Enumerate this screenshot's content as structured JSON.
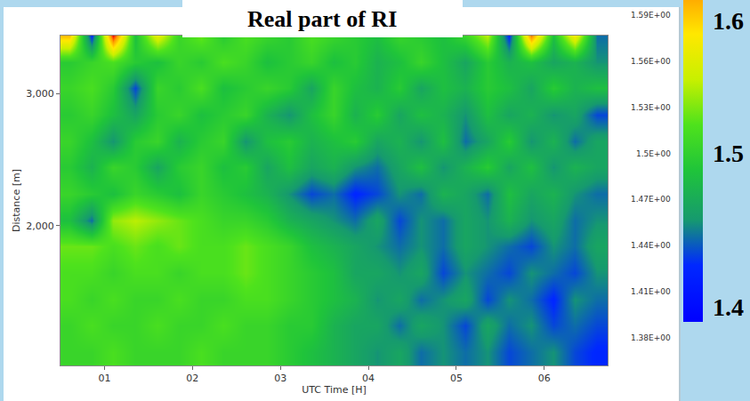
{
  "chart_data": {
    "type": "heatmap",
    "title": "Real part of RI",
    "xlabel": "UTC Time [H]",
    "ylabel": "Distance [m]",
    "x": [
      0.6,
      0.85,
      1.1,
      1.35,
      1.6,
      1.85,
      2.1,
      2.35,
      2.6,
      2.85,
      3.1,
      3.35,
      3.6,
      3.85,
      4.1,
      4.35,
      4.6,
      4.85,
      5.1,
      5.35,
      5.6,
      5.85,
      6.1,
      6.35,
      6.6
    ],
    "y": [
      1040,
      1240,
      1440,
      1640,
      1840,
      2040,
      2240,
      2440,
      2640,
      2840,
      3040,
      3240,
      3440
    ],
    "z": [
      [
        1.46,
        1.46,
        1.47,
        1.46,
        1.46,
        1.46,
        1.47,
        1.46,
        1.46,
        1.46,
        1.45,
        1.44,
        1.43,
        1.42,
        1.41,
        1.42,
        1.4,
        1.41,
        1.4,
        1.41,
        1.39,
        1.4,
        1.41,
        1.39,
        1.38
      ],
      [
        1.46,
        1.47,
        1.46,
        1.46,
        1.47,
        1.46,
        1.46,
        1.47,
        1.46,
        1.46,
        1.45,
        1.45,
        1.43,
        1.42,
        1.42,
        1.4,
        1.42,
        1.41,
        1.39,
        1.42,
        1.4,
        1.41,
        1.39,
        1.4,
        1.39
      ],
      [
        1.47,
        1.46,
        1.47,
        1.46,
        1.46,
        1.47,
        1.46,
        1.46,
        1.47,
        1.47,
        1.46,
        1.45,
        1.44,
        1.43,
        1.41,
        1.42,
        1.4,
        1.41,
        1.42,
        1.39,
        1.41,
        1.4,
        1.38,
        1.41,
        1.4
      ],
      [
        1.47,
        1.47,
        1.46,
        1.47,
        1.47,
        1.46,
        1.47,
        1.47,
        1.48,
        1.47,
        1.46,
        1.45,
        1.44,
        1.42,
        1.42,
        1.41,
        1.42,
        1.39,
        1.41,
        1.4,
        1.39,
        1.41,
        1.4,
        1.39,
        1.41
      ],
      [
        1.48,
        1.48,
        1.47,
        1.48,
        1.47,
        1.48,
        1.47,
        1.47,
        1.48,
        1.47,
        1.46,
        1.44,
        1.43,
        1.42,
        1.41,
        1.4,
        1.41,
        1.4,
        1.42,
        1.41,
        1.4,
        1.39,
        1.41,
        1.4,
        1.42
      ],
      [
        1.44,
        1.4,
        1.49,
        1.5,
        1.49,
        1.48,
        1.47,
        1.46,
        1.46,
        1.45,
        1.43,
        1.42,
        1.41,
        1.4,
        1.42,
        1.39,
        1.41,
        1.4,
        1.42,
        1.41,
        1.43,
        1.41,
        1.42,
        1.4,
        1.41
      ],
      [
        1.46,
        1.45,
        1.44,
        1.46,
        1.45,
        1.44,
        1.46,
        1.45,
        1.44,
        1.43,
        1.41,
        1.39,
        1.4,
        1.38,
        1.39,
        1.41,
        1.4,
        1.43,
        1.42,
        1.4,
        1.44,
        1.42,
        1.43,
        1.41,
        1.4
      ],
      [
        1.45,
        1.43,
        1.46,
        1.45,
        1.42,
        1.45,
        1.46,
        1.44,
        1.45,
        1.42,
        1.44,
        1.42,
        1.43,
        1.41,
        1.4,
        1.42,
        1.44,
        1.41,
        1.43,
        1.45,
        1.42,
        1.44,
        1.41,
        1.43,
        1.42
      ],
      [
        1.46,
        1.44,
        1.41,
        1.45,
        1.46,
        1.43,
        1.45,
        1.46,
        1.41,
        1.44,
        1.45,
        1.43,
        1.44,
        1.45,
        1.42,
        1.43,
        1.41,
        1.44,
        1.4,
        1.42,
        1.45,
        1.41,
        1.43,
        1.4,
        1.42
      ],
      [
        1.45,
        1.46,
        1.44,
        1.42,
        1.45,
        1.46,
        1.44,
        1.45,
        1.46,
        1.43,
        1.41,
        1.44,
        1.46,
        1.43,
        1.45,
        1.42,
        1.44,
        1.43,
        1.41,
        1.44,
        1.42,
        1.43,
        1.41,
        1.42,
        1.39
      ],
      [
        1.46,
        1.47,
        1.45,
        1.39,
        1.46,
        1.45,
        1.47,
        1.44,
        1.45,
        1.46,
        1.45,
        1.42,
        1.46,
        1.44,
        1.43,
        1.45,
        1.42,
        1.44,
        1.43,
        1.45,
        1.44,
        1.42,
        1.45,
        1.43,
        1.44
      ],
      [
        1.45,
        1.46,
        1.47,
        1.45,
        1.44,
        1.46,
        1.45,
        1.47,
        1.46,
        1.44,
        1.45,
        1.46,
        1.44,
        1.45,
        1.43,
        1.44,
        1.46,
        1.44,
        1.42,
        1.45,
        1.43,
        1.44,
        1.42,
        1.43,
        1.41
      ],
      [
        1.55,
        1.38,
        1.59,
        1.44,
        1.52,
        1.46,
        1.48,
        1.45,
        1.47,
        1.46,
        1.45,
        1.47,
        1.46,
        1.45,
        1.44,
        1.46,
        1.45,
        1.44,
        1.46,
        1.5,
        1.38,
        1.57,
        1.44,
        1.53,
        1.4
      ]
    ],
    "xlim": [
      0.5,
      6.72
    ],
    "xticks": [
      {
        "value": 1,
        "label": "01"
      },
      {
        "value": 2,
        "label": "02"
      },
      {
        "value": 3,
        "label": "03"
      },
      {
        "value": 4,
        "label": "04"
      },
      {
        "value": 5,
        "label": "05"
      },
      {
        "value": 6,
        "label": "06"
      }
    ],
    "ylim": [
      940,
      3440
    ],
    "yticks": [
      {
        "value": 2000,
        "label": "2,000"
      },
      {
        "value": 3000,
        "label": "3,000"
      }
    ],
    "zlim": [
      1.345,
      1.592
    ],
    "colorbar_ticks": [
      {
        "value": 1.59,
        "label": "1.59E+00"
      },
      {
        "value": 1.56,
        "label": "1.56E+00"
      },
      {
        "value": 1.53,
        "label": "1.53E+00"
      },
      {
        "value": 1.5,
        "label": "1.5E+00"
      },
      {
        "value": 1.47,
        "label": "1.47E+00"
      },
      {
        "value": 1.44,
        "label": "1.44E+00"
      },
      {
        "value": 1.41,
        "label": "1.41E+00"
      },
      {
        "value": 1.38,
        "label": "1.38E+00"
      }
    ],
    "colorbar_labels": [
      1.6,
      1.5,
      1.4
    ],
    "grid": false
  }
}
